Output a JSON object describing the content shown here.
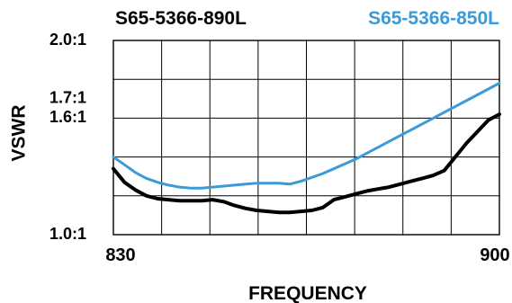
{
  "chart_data": {
    "type": "line",
    "xlabel": "FREQUENCY",
    "ylabel": "VSWR",
    "xlim": [
      830,
      900
    ],
    "ylim": [
      1.0,
      2.0
    ],
    "x_ticks": [
      {
        "value": 830,
        "label": "830"
      },
      {
        "value": 900,
        "label": "900"
      }
    ],
    "y_ticks": [
      {
        "value": 1.0,
        "label": "1.0:1"
      },
      {
        "value": 1.6,
        "label": "1.6:1"
      },
      {
        "value": 1.7,
        "label": "1.7:1"
      },
      {
        "value": 2.0,
        "label": "2.0:1"
      }
    ],
    "grid": true,
    "grid_lines": {
      "x_divisions": 8,
      "y_values": [
        1.2,
        1.4,
        1.6,
        1.8
      ]
    },
    "legend": "top",
    "series": [
      {
        "name": "S65-5366-890L",
        "color": "#000000",
        "x": [
          830,
          832,
          834,
          836,
          838,
          840,
          842,
          844,
          846,
          848,
          850,
          852,
          854,
          856,
          858,
          860,
          862,
          864,
          866,
          868,
          870,
          872,
          874,
          876,
          878,
          880,
          882,
          884,
          886,
          888,
          890,
          892,
          894,
          896,
          898,
          900
        ],
        "values": [
          1.34,
          1.27,
          1.23,
          1.2,
          1.185,
          1.18,
          1.175,
          1.175,
          1.175,
          1.18,
          1.17,
          1.15,
          1.135,
          1.125,
          1.12,
          1.115,
          1.115,
          1.12,
          1.125,
          1.14,
          1.18,
          1.195,
          1.21,
          1.225,
          1.235,
          1.245,
          1.26,
          1.275,
          1.29,
          1.305,
          1.33,
          1.4,
          1.47,
          1.53,
          1.59,
          1.62
        ]
      },
      {
        "name": "S65-5366-850L",
        "color": "#3a9bd8",
        "x": [
          830,
          832,
          834,
          836,
          838,
          840,
          842,
          844,
          846,
          848,
          850,
          852,
          854,
          856,
          858,
          860,
          862,
          864,
          866,
          868,
          870,
          872,
          874,
          876,
          878,
          880,
          882,
          884,
          886,
          888,
          890,
          892,
          894,
          896,
          898,
          900
        ],
        "values": [
          1.4,
          1.36,
          1.32,
          1.29,
          1.27,
          1.255,
          1.245,
          1.24,
          1.24,
          1.245,
          1.25,
          1.255,
          1.26,
          1.265,
          1.265,
          1.265,
          1.26,
          1.275,
          1.295,
          1.315,
          1.34,
          1.365,
          1.39,
          1.42,
          1.45,
          1.48,
          1.51,
          1.54,
          1.57,
          1.6,
          1.63,
          1.66,
          1.69,
          1.72,
          1.75,
          1.78
        ]
      }
    ]
  }
}
